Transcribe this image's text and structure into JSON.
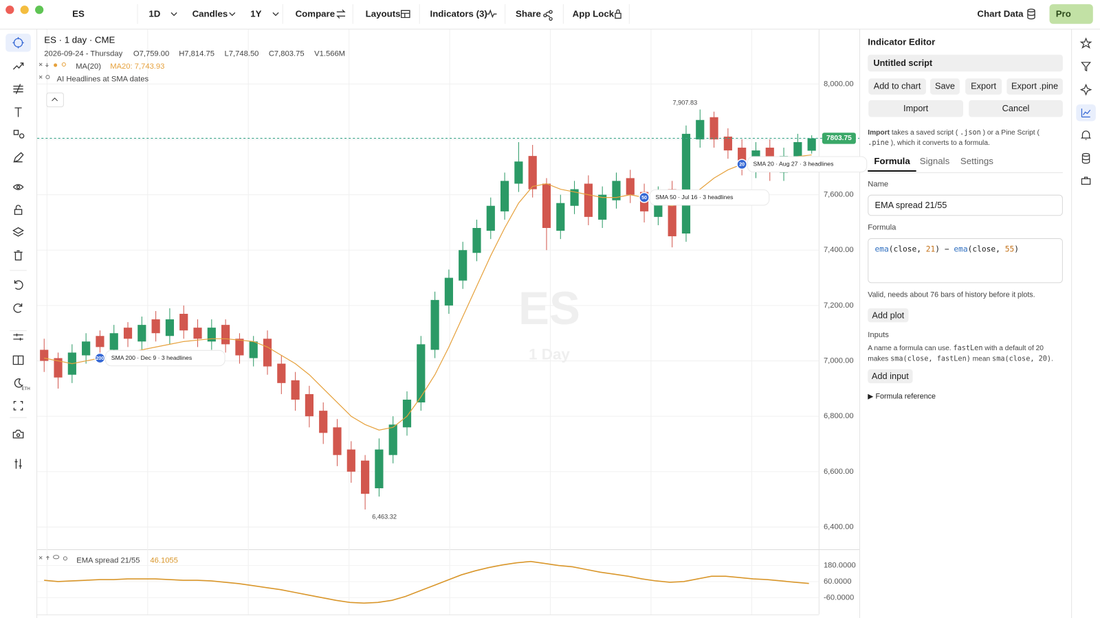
{
  "toolbar": {
    "symbol": "ES",
    "interval": "1D",
    "chart_style": "Candles",
    "range": "1Y",
    "compare": "Compare",
    "layouts": "Layouts",
    "indicators": "Indicators (3)",
    "share": "Share",
    "app_lock": "App Lock",
    "chart_data": "Chart Data",
    "plan": "Pro"
  },
  "left_toolbar": {
    "eth_label": "ETH"
  },
  "chart_data": {
    "type": "candlestick",
    "header": {
      "title": "ES · 1 day · CME",
      "date": "2026-09-24 - Thursday",
      "open": "O7,759.00",
      "high": "H7,814.75",
      "low": "L7,748.50",
      "close": "C7,803.75",
      "volume": "V1.566M",
      "headlines_legend": "AI Headlines at SMA dates"
    },
    "watermark": {
      "symbol": "ES",
      "interval": "1 Day"
    },
    "up_color": "#2b9a66",
    "down_color": "#d2574e",
    "open": [
      7040,
      7010,
      6950,
      7020,
      7090,
      7040,
      7120,
      7070,
      7150,
      7090,
      7170,
      7120,
      7070,
      7130,
      7080,
      7010,
      7080,
      6990,
      6930,
      6880,
      6820,
      6760,
      6680,
      6640,
      6540,
      6660,
      6760,
      6850,
      7040,
      7200,
      7290,
      7390,
      7470,
      7540,
      7640,
      7740,
      7640,
      7470,
      7560,
      7640,
      7510,
      7580,
      7660,
      7610,
      7520,
      7620,
      7460,
      7800,
      7880,
      7810,
      7770,
      7690,
      7770,
      7680,
      7730,
      7759
    ],
    "high": [
      7080,
      7030,
      7060,
      7100,
      7110,
      7130,
      7140,
      7160,
      7180,
      7190,
      7200,
      7150,
      7150,
      7150,
      7100,
      7090,
      7110,
      7020,
      6960,
      6910,
      6850,
      6790,
      6710,
      6660,
      6720,
      6800,
      6890,
      7090,
      7250,
      7330,
      7430,
      7510,
      7590,
      7680,
      7790,
      7780,
      7660,
      7600,
      7650,
      7670,
      7630,
      7680,
      7690,
      7640,
      7630,
      7650,
      7850,
      7907.83,
      7900,
      7840,
      7800,
      7790,
      7800,
      7770,
      7820,
      7814.75
    ],
    "low": [
      6960,
      6900,
      6920,
      6990,
      7020,
      7010,
      7050,
      7040,
      7070,
      7060,
      7080,
      7050,
      7040,
      7030,
      6990,
      6980,
      6950,
      6880,
      6820,
      6760,
      6700,
      6620,
      6560,
      6463.32,
      6510,
      6630,
      6730,
      6820,
      7010,
      7170,
      7260,
      7360,
      7440,
      7510,
      7610,
      7590,
      7400,
      7440,
      7530,
      7490,
      7480,
      7550,
      7570,
      7500,
      7490,
      7410,
      7430,
      7770,
      7770,
      7730,
      7670,
      7660,
      7650,
      7650,
      7700,
      7748.5
    ],
    "close": [
      7000,
      6940,
      7030,
      7070,
      7050,
      7100,
      7080,
      7130,
      7100,
      7150,
      7110,
      7080,
      7120,
      7060,
      7020,
      7070,
      6980,
      6920,
      6860,
      6800,
      6740,
      6660,
      6600,
      6520,
      6680,
      6770,
      6860,
      7060,
      7220,
      7300,
      7400,
      7480,
      7560,
      7650,
      7720,
      7620,
      7480,
      7570,
      7620,
      7520,
      7600,
      7650,
      7600,
      7540,
      7600,
      7450,
      7820,
      7870,
      7800,
      7760,
      7700,
      7760,
      7690,
      7740,
      7790,
      7803.75
    ],
    "ylim": [
      6322,
      8197
    ],
    "yticks": [
      {
        "value": 8000,
        "label": "8,000.00"
      },
      {
        "value": 7800,
        "label": "7,800.00"
      },
      {
        "value": 7600,
        "label": "7,600.00"
      },
      {
        "value": 7400,
        "label": "7,400.00"
      },
      {
        "value": 7200,
        "label": "7,200.00"
      },
      {
        "value": 7000,
        "label": "7,000.00"
      },
      {
        "value": 6800,
        "label": "6,800.00"
      },
      {
        "value": 6600,
        "label": "6,600.00"
      },
      {
        "value": 6400,
        "label": "6,400.00"
      }
    ],
    "grid": true,
    "last_price_label": "7803.75",
    "ma": {
      "name": "MA(20)",
      "value_label": "MA20: 7,743.93",
      "color": "#e6a13c",
      "values": [
        7010,
        7000,
        6990,
        7000,
        7010,
        7020,
        7030,
        7040,
        7050,
        7060,
        7070,
        7075,
        7080,
        7080,
        7075,
        7070,
        7050,
        7020,
        6990,
        6950,
        6900,
        6850,
        6800,
        6770,
        6750,
        6760,
        6800,
        6870,
        6950,
        7050,
        7160,
        7270,
        7380,
        7480,
        7570,
        7630,
        7640,
        7620,
        7610,
        7600,
        7590,
        7590,
        7600,
        7590,
        7570,
        7560,
        7580,
        7620,
        7660,
        7690,
        7710,
        7720,
        7725,
        7730,
        7738,
        7743.93
      ]
    },
    "annotations": [
      {
        "text": "7,907.83",
        "candle": 47,
        "at": "high"
      },
      {
        "text": "6,463.32",
        "candle": 23,
        "at": "low"
      }
    ],
    "markers": [
      {
        "badge": "200",
        "text": "SMA 200 · Dec 9 · 3 headlines",
        "candle": 4
      },
      {
        "badge": "50",
        "text": "SMA 50 · Jul 16 · 3 headlines",
        "candle": 43
      },
      {
        "badge": "20",
        "text": "SMA 20 · Aug 27 · 3 headlines",
        "candle": 50
      }
    ],
    "indicator": {
      "name": "EMA spread 21/55",
      "value_label": "46.1055",
      "color": "#d9962a",
      "values": [
        70,
        60,
        65,
        70,
        75,
        75,
        80,
        80,
        80,
        75,
        70,
        70,
        65,
        55,
        45,
        30,
        15,
        0,
        -20,
        -40,
        -60,
        -80,
        -95,
        -100,
        -95,
        -80,
        -50,
        -10,
        30,
        70,
        110,
        140,
        165,
        185,
        200,
        210,
        195,
        180,
        170,
        150,
        130,
        115,
        100,
        80,
        65,
        55,
        60,
        80,
        100,
        100,
        90,
        80,
        75,
        65,
        55,
        46.1055
      ],
      "ylim": [
        -185,
        295
      ],
      "yticks": [
        {
          "value": 180,
          "label": "180.0000"
        },
        {
          "value": 60,
          "label": "60.0000"
        },
        {
          "value": -60,
          "label": "-60.0000"
        }
      ]
    }
  },
  "editor": {
    "title": "Indicator Editor",
    "script": "Untitled script",
    "actions": [
      "Add to chart",
      "Save",
      "Export",
      "Export .pine"
    ],
    "import": "Import",
    "cancel": "Cancel",
    "import_help": [
      {
        "text": "Import",
        "style": "bold"
      },
      {
        "text": " takes a saved script ( ",
        "style": "plain"
      },
      {
        "text": ".json",
        "style": "code"
      },
      {
        "text": " ) or a Pine Script ( ",
        "style": "plain"
      },
      {
        "text": ".pine",
        "style": "code"
      },
      {
        "text": " ), which it converts to a formula.",
        "style": "plain"
      }
    ],
    "tabs": [
      "Formula",
      "Signals",
      "Settings"
    ],
    "active_tab": 0,
    "name_label": "Name",
    "name_value": "EMA spread 21/55",
    "formula_label": "Formula",
    "formula": [
      {
        "text": "ema",
        "style": "fn"
      },
      {
        "text": "(close, ",
        "style": "plain"
      },
      {
        "text": "21",
        "style": "num"
      },
      {
        "text": ") − ",
        "style": "plain"
      },
      {
        "text": "ema",
        "style": "fn"
      },
      {
        "text": "(close, ",
        "style": "plain"
      },
      {
        "text": "55",
        "style": "num"
      },
      {
        "text": ")",
        "style": "plain"
      }
    ],
    "validation": "Valid, needs about 76 bars of history before it plots.",
    "add_plot": "Add plot",
    "inputs_label": "Inputs",
    "inputs_help": [
      {
        "text": "A name a formula can use. ",
        "style": "plain"
      },
      {
        "text": "fastLen",
        "style": "code"
      },
      {
        "text": " with a default of 20 makes ",
        "style": "plain"
      },
      {
        "text": "sma(close, fastLen)",
        "style": "code"
      },
      {
        "text": " mean ",
        "style": "plain"
      },
      {
        "text": "sma(close, 20)",
        "style": "code"
      },
      {
        "text": ".",
        "style": "plain"
      }
    ],
    "add_input": "Add input",
    "reference": "▶ Formula reference"
  }
}
